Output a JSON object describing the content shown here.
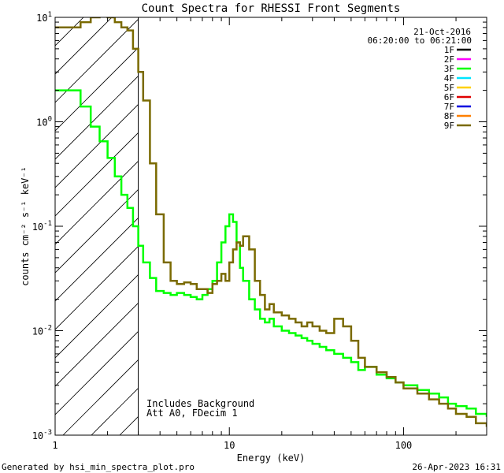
{
  "chart_data": {
    "type": "line",
    "title": "Count Spectra for RHESSI Front Segments",
    "xlabel": "Energy (keV)",
    "ylabel": "counts cm⁻² s⁻¹ keV⁻¹",
    "xscale": "log",
    "yscale": "log",
    "xlim": [
      1,
      300
    ],
    "ylim": [
      0.001,
      10
    ],
    "x_ticks": [
      {
        "value": 1,
        "label": "1"
      },
      {
        "value": 10,
        "label": "10"
      },
      {
        "value": 100,
        "label": "100"
      }
    ],
    "y_ticks": [
      {
        "value": 10,
        "base": "10",
        "exp": "1"
      },
      {
        "value": 1,
        "base": "10",
        "exp": "0"
      },
      {
        "value": 0.1,
        "base": "10",
        "exp": "-1"
      },
      {
        "value": 0.01,
        "base": "10",
        "exp": "-2"
      },
      {
        "value": 0.001,
        "base": "10",
        "exp": "-3"
      }
    ],
    "date": "21-Oct-2016",
    "time_range": "06:20:00 to 06:21:00",
    "legend": [
      {
        "label": "1F",
        "color": "#000000"
      },
      {
        "label": "2F",
        "color": "#ff00ff"
      },
      {
        "label": "3F",
        "color": "#00ff00"
      },
      {
        "label": "4F",
        "color": "#00e5ff"
      },
      {
        "label": "5F",
        "color": "#ffd000"
      },
      {
        "label": "6F",
        "color": "#e00000"
      },
      {
        "label": "7F",
        "color": "#0000e0"
      },
      {
        "label": "8F",
        "color": "#ff8000"
      },
      {
        "label": "9F",
        "color": "#7a6a00"
      }
    ],
    "hatched_region": {
      "x_from": 1,
      "x_to": 3
    },
    "annotations": [
      "Includes Background",
      "Att A0, FDecim 1"
    ],
    "series": [
      {
        "name": "3F",
        "color": "#00ff00",
        "x": [
          1.0,
          1.2,
          1.4,
          1.6,
          1.8,
          2.0,
          2.2,
          2.4,
          2.6,
          2.8,
          3.0,
          3.2,
          3.5,
          3.8,
          4.2,
          4.6,
          5.0,
          5.5,
          6.0,
          6.5,
          7.0,
          7.5,
          8.0,
          8.5,
          9.0,
          9.5,
          10.0,
          10.5,
          11.0,
          11.5,
          12.0,
          13.0,
          14.0,
          15.0,
          16.0,
          17.0,
          18.0,
          20.0,
          22.0,
          24.0,
          26.0,
          28.0,
          30.0,
          33.0,
          36.0,
          40.0,
          45.0,
          50.0,
          55.0,
          60.0,
          70.0,
          80.0,
          90.0,
          100.0,
          120.0,
          140.0,
          160.0,
          180.0,
          200.0,
          230.0,
          260.0,
          300.0
        ],
        "y": [
          2.0,
          2.0,
          1.4,
          0.9,
          0.65,
          0.45,
          0.3,
          0.2,
          0.15,
          0.1,
          0.065,
          0.045,
          0.032,
          0.024,
          0.023,
          0.022,
          0.023,
          0.022,
          0.021,
          0.02,
          0.022,
          0.025,
          0.03,
          0.045,
          0.07,
          0.1,
          0.13,
          0.11,
          0.07,
          0.04,
          0.03,
          0.02,
          0.016,
          0.013,
          0.012,
          0.013,
          0.011,
          0.01,
          0.0095,
          0.009,
          0.0085,
          0.008,
          0.0075,
          0.007,
          0.0065,
          0.006,
          0.0055,
          0.005,
          0.0042,
          0.0045,
          0.0038,
          0.0035,
          0.0032,
          0.003,
          0.0027,
          0.0025,
          0.0023,
          0.002,
          0.0019,
          0.0018,
          0.0016,
          0.0015
        ]
      },
      {
        "name": "9F",
        "color": "#7a6a00",
        "x": [
          1.0,
          1.2,
          1.4,
          1.6,
          1.8,
          2.0,
          2.2,
          2.4,
          2.6,
          2.8,
          3.0,
          3.2,
          3.5,
          3.8,
          4.2,
          4.6,
          5.0,
          5.5,
          6.0,
          6.5,
          7.0,
          7.5,
          8.0,
          8.5,
          9.0,
          9.5,
          10.0,
          10.5,
          11.0,
          11.5,
          12.0,
          13.0,
          14.0,
          15.0,
          16.0,
          17.0,
          18.0,
          20.0,
          22.0,
          24.0,
          26.0,
          28.0,
          30.0,
          33.0,
          36.0,
          40.0,
          45.0,
          50.0,
          55.0,
          60.0,
          70.0,
          80.0,
          90.0,
          100.0,
          120.0,
          140.0,
          160.0,
          180.0,
          200.0,
          230.0,
          260.0,
          300.0
        ],
        "y": [
          8.0,
          8.0,
          9.0,
          10.0,
          10.5,
          10.0,
          9.0,
          8.0,
          7.5,
          5.0,
          3.0,
          1.6,
          0.4,
          0.13,
          0.045,
          0.03,
          0.028,
          0.029,
          0.028,
          0.025,
          0.025,
          0.023,
          0.028,
          0.03,
          0.035,
          0.03,
          0.045,
          0.06,
          0.07,
          0.065,
          0.08,
          0.06,
          0.03,
          0.022,
          0.016,
          0.018,
          0.015,
          0.014,
          0.013,
          0.012,
          0.011,
          0.012,
          0.011,
          0.01,
          0.0095,
          0.013,
          0.011,
          0.008,
          0.0055,
          0.0045,
          0.004,
          0.0036,
          0.0032,
          0.0028,
          0.0025,
          0.0022,
          0.002,
          0.0018,
          0.0016,
          0.0015,
          0.0013,
          0.0012
        ]
      }
    ]
  },
  "footer": {
    "left": "Generated by hsi_min_spectra_plot.pro",
    "right": "26-Apr-2023 16:31"
  }
}
